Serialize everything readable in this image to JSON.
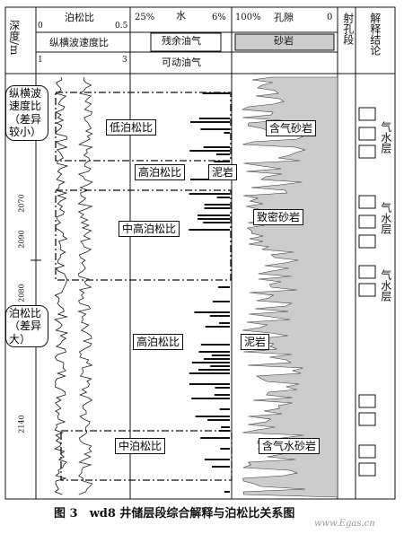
{
  "header": {
    "depth": "深度/m",
    "poisson": "泊松比",
    "poisson_min": "0",
    "poisson_max": "0.5",
    "vpvs": "纵横波速度比",
    "vpvs_min": "1",
    "vpvs_max": "3",
    "water_min": "25%",
    "water": "水",
    "water_max": "6%",
    "residual": "残余油气",
    "movable": "可动油气",
    "porosity": "孔隙",
    "porosity_min": "100%",
    "porosity_max": "0",
    "sandstone": "砂岩",
    "perforation": "射孔段",
    "conclusion": "解释结论"
  },
  "depth_labels": [
    "2070",
    "2090",
    "2080",
    "2140"
  ],
  "annotations": {
    "vpvs_note": "纵横波速度比（差异较小）",
    "poisson_note": "泊松比（差异大）",
    "low": "低泊松比",
    "high1": "高泊松比",
    "mid_high": "中高泊松比",
    "high2": "高泊松比",
    "mid": "中泊松比",
    "gas_sand": "含气砂岩",
    "mudstone1": "泥岩",
    "tight_sand": "致密砂岩",
    "mudstone2": "泥岩",
    "gas_water_sand": "含气水砂岩"
  },
  "conclusions": [
    "气水层",
    "气水层",
    "气水层"
  ],
  "caption": "图 3　wd8 井储层段综合解释与泊松比关系图",
  "watermark": "www.Egas.cn"
}
